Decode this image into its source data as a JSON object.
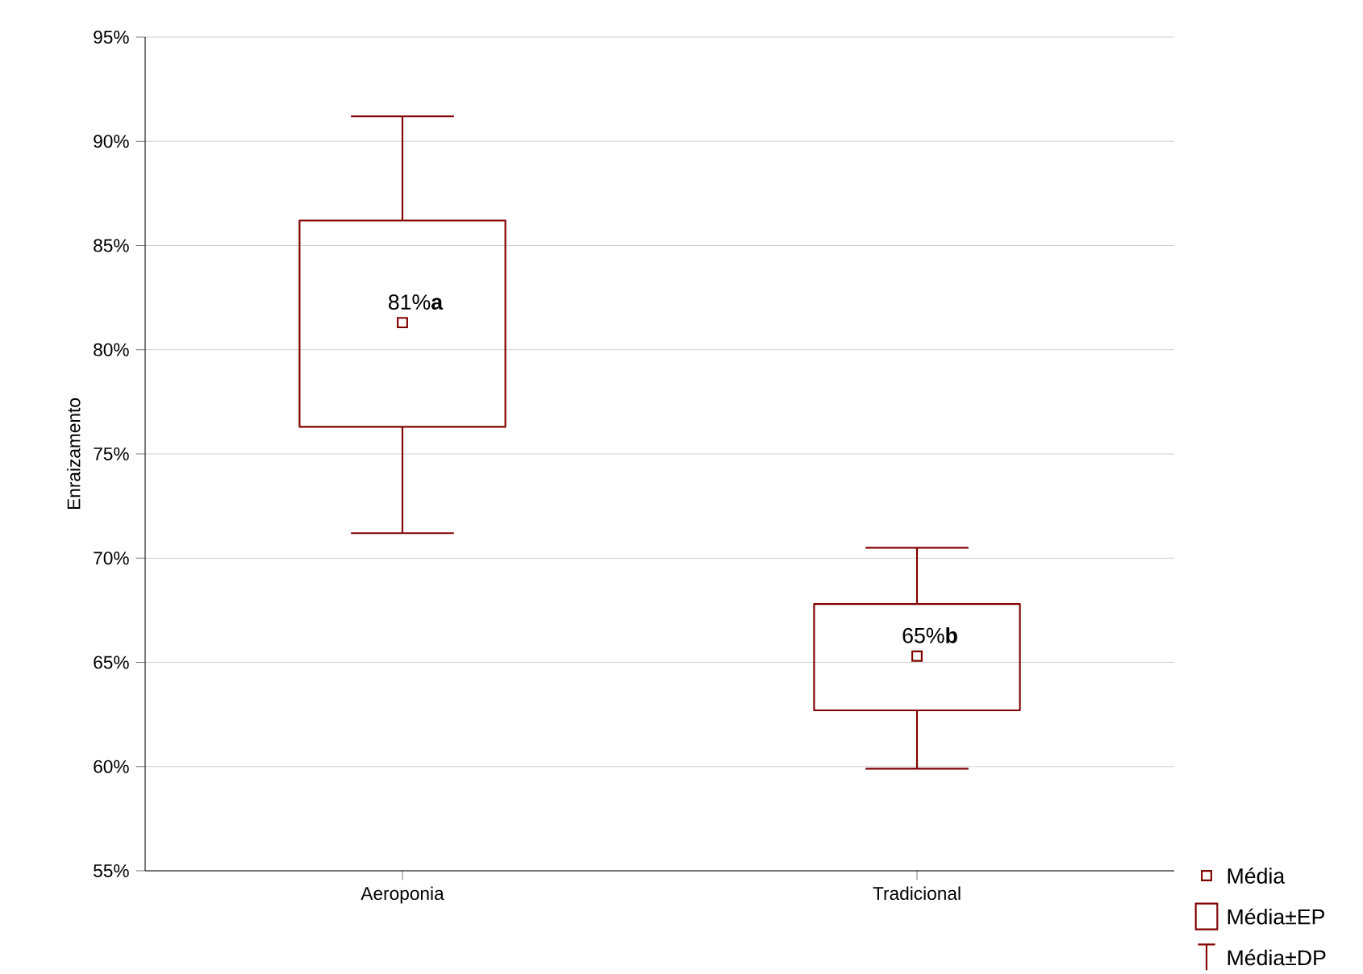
{
  "chart_data": {
    "type": "box",
    "ylabel": "Enraizamento",
    "categories": [
      "Aeroponia",
      "Tradicional"
    ],
    "boxes": [
      {
        "low": 71.2,
        "q1": 76.3,
        "q3": 86.2,
        "high": 91.2,
        "mean": 81.3
      },
      {
        "low": 59.9,
        "q1": 62.7,
        "q3": 67.8,
        "high": 70.5,
        "mean": 65.3
      }
    ],
    "color": "#800000",
    "marker": "square",
    "grid": "y",
    "ylim": [
      55,
      95
    ],
    "yticks": [
      {
        "value": 55,
        "label": "55%"
      },
      {
        "value": 60,
        "label": "60%"
      },
      {
        "value": 65,
        "label": "65%"
      },
      {
        "value": 70,
        "label": "70%"
      },
      {
        "value": 75,
        "label": "75%"
      },
      {
        "value": 80,
        "label": "80%"
      },
      {
        "value": 85,
        "label": "85%"
      },
      {
        "value": 90,
        "label": "90%"
      },
      {
        "value": 95,
        "label": "95%"
      }
    ],
    "annotations": [
      "81%**a**",
      "65%**b**",
      "Média",
      "Média±EP",
      "Média±DP"
    ]
  }
}
